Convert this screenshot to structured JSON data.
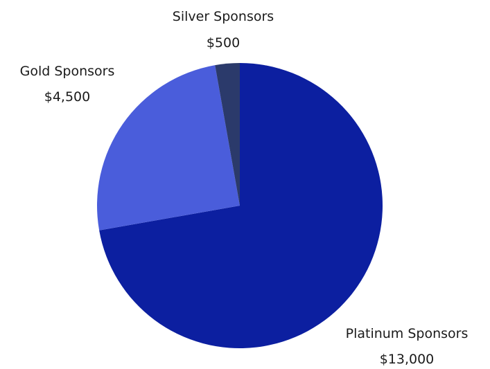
{
  "chart_data": {
    "type": "pie",
    "title": "",
    "slices": [
      {
        "label": "Platinum Sponsors",
        "value_label": "$13,000",
        "value": 13000,
        "color": "#0c1fa0"
      },
      {
        "label": "Gold Sponsors",
        "value_label": "$4,500",
        "value": 4500,
        "color": "#4a5ddb"
      },
      {
        "label": "Silver Sponsors",
        "value_label": "$500",
        "value": 500,
        "color": "#2b3a6b"
      }
    ],
    "start": "top",
    "direction": "clockwise",
    "legend": "none (labels next to slices)"
  }
}
